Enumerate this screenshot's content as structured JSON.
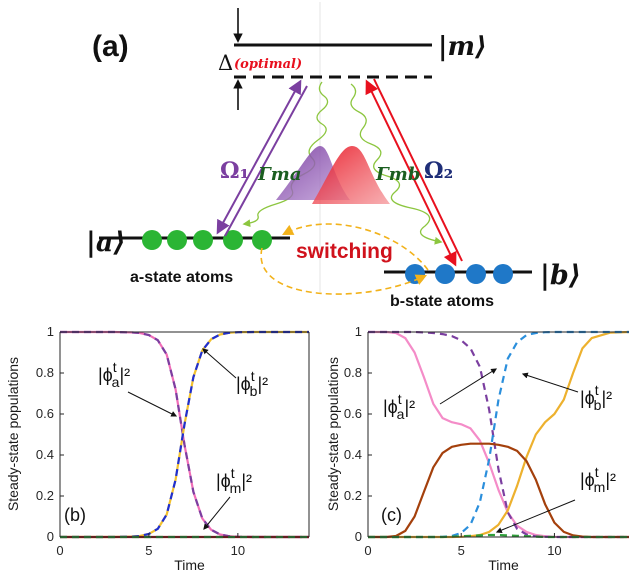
{
  "diagram": {
    "panel_label": "(a)",
    "state_m": "|m⟩",
    "state_a": "|a⟩",
    "state_b": "|b⟩",
    "delta_symbol": "Δ",
    "delta_note": "(optimal)",
    "omega1": "Ω₁",
    "omega2": "Ω₂",
    "gamma_ma": "Γma",
    "gamma_mb": "Γmb",
    "switching": "switching",
    "a_atoms": "a-state atoms",
    "b_atoms": "b-state atoms",
    "colors": {
      "omega1": "#7B3FA0",
      "omega2": "#E8101E",
      "gamma": "#1B5E20",
      "a_atom": "#2BB534",
      "b_atom": "#1F78C8",
      "switch_arrow": "#F2B21B",
      "decay": "#8CC63F"
    }
  },
  "chart_data": [
    {
      "type": "line",
      "panel_label": "(b)",
      "xlabel": "Time",
      "ylabel": "Steady-state populations",
      "xlim": [
        0,
        14
      ],
      "ylim": [
        0,
        1
      ],
      "xticks": [
        0,
        5,
        10
      ],
      "yticks": [
        0,
        0.2,
        0.4,
        0.6,
        0.8,
        1
      ],
      "x": [
        0,
        1,
        2,
        3,
        4,
        4.5,
        5,
        5.5,
        6,
        6.5,
        7,
        7.5,
        8,
        8.5,
        9,
        9.5,
        10,
        11,
        12,
        13,
        14
      ],
      "series": [
        {
          "key": "a",
          "color": "#F06EB8",
          "dash": "solid",
          "values": [
            1,
            1,
            1,
            1,
            0.998,
            0.995,
            0.985,
            0.96,
            0.89,
            0.72,
            0.45,
            0.22,
            0.09,
            0.035,
            0.012,
            0.004,
            0.001,
            0,
            0,
            0,
            0
          ]
        },
        {
          "key": "a_overlay",
          "color": "#7B3FA0",
          "dash": "dash",
          "values": [
            1,
            1,
            1,
            1,
            0.998,
            0.995,
            0.985,
            0.96,
            0.89,
            0.72,
            0.45,
            0.22,
            0.09,
            0.035,
            0.012,
            0.004,
            0.001,
            0,
            0,
            0,
            0
          ]
        },
        {
          "key": "b",
          "color": "#F2C12E",
          "dash": "solid",
          "values": [
            0,
            0,
            0,
            0,
            0.002,
            0.005,
            0.015,
            0.04,
            0.11,
            0.28,
            0.55,
            0.78,
            0.91,
            0.965,
            0.988,
            0.996,
            0.999,
            1,
            1,
            1,
            1
          ]
        },
        {
          "key": "b_overlay",
          "color": "#1F2FD0",
          "dash": "dash",
          "values": [
            0,
            0,
            0,
            0,
            0.002,
            0.005,
            0.015,
            0.04,
            0.11,
            0.28,
            0.55,
            0.78,
            0.91,
            0.965,
            0.988,
            0.996,
            0.999,
            1,
            1,
            1,
            1
          ]
        },
        {
          "key": "m",
          "color": "#9E1A1A",
          "dash": "solid",
          "values": [
            0,
            0,
            0,
            0,
            0,
            0,
            0,
            0,
            0,
            0,
            0,
            0,
            0,
            0,
            0,
            0,
            0,
            0,
            0,
            0,
            0
          ]
        },
        {
          "key": "m_overlay",
          "color": "#2E9E3A",
          "dash": "dash",
          "values": [
            0,
            0,
            0,
            0,
            0,
            0,
            0,
            0,
            0,
            0,
            0,
            0,
            0,
            0,
            0,
            0,
            0,
            0,
            0,
            0,
            0
          ]
        }
      ],
      "annotations": [
        {
          "base": "|ϕ",
          "sup": "t",
          "sub": "a",
          "tail": "|²",
          "key": "a"
        },
        {
          "base": "|ϕ",
          "sup": "t",
          "sub": "b",
          "tail": "|²",
          "key": "b"
        },
        {
          "base": "|ϕ",
          "sup": "t",
          "sub": "m",
          "tail": "|²",
          "key": "m"
        }
      ]
    },
    {
      "type": "line",
      "panel_label": "(c)",
      "xlabel": "Time",
      "ylabel": "Steady-state populations",
      "xlim": [
        0,
        14
      ],
      "ylim": [
        0,
        1
      ],
      "xticks": [
        0,
        5,
        10
      ],
      "yticks": [
        0,
        0.2,
        0.4,
        0.6,
        0.8,
        1
      ],
      "x": [
        0,
        1,
        1.5,
        2,
        2.5,
        3,
        3.5,
        4,
        4.5,
        5,
        5.5,
        6,
        6.5,
        7,
        7.5,
        8,
        8.5,
        9,
        9.5,
        10,
        10.5,
        11,
        11.5,
        12,
        13,
        14
      ],
      "series": [
        {
          "key": "a",
          "color": "#F48CC8",
          "dash": "solid",
          "values": [
            1,
            1,
            0.995,
            0.97,
            0.9,
            0.78,
            0.65,
            0.58,
            0.56,
            0.55,
            0.53,
            0.47,
            0.36,
            0.23,
            0.12,
            0.055,
            0.025,
            0.01,
            0.004,
            0.001,
            0,
            0,
            0,
            0,
            0,
            0
          ]
        },
        {
          "key": "a_dashed",
          "color": "#7B3FA0",
          "dash": "dash",
          "values": [
            1,
            1,
            1,
            1,
            1,
            0.998,
            0.995,
            0.99,
            0.98,
            0.96,
            0.92,
            0.83,
            0.62,
            0.33,
            0.12,
            0.04,
            0.012,
            0.003,
            0.001,
            0,
            0,
            0,
            0,
            0,
            0,
            0
          ]
        },
        {
          "key": "b",
          "color": "#EDB12E",
          "dash": "solid",
          "values": [
            0,
            0,
            0,
            0,
            0,
            0,
            0,
            0,
            0,
            0.001,
            0.004,
            0.01,
            0.025,
            0.06,
            0.13,
            0.25,
            0.39,
            0.5,
            0.56,
            0.6,
            0.67,
            0.8,
            0.92,
            0.97,
            0.997,
            1
          ]
        },
        {
          "key": "b_dashed",
          "color": "#2B8FDC",
          "dash": "dash",
          "values": [
            0,
            0,
            0,
            0,
            0,
            0,
            0,
            0.001,
            0.005,
            0.02,
            0.06,
            0.17,
            0.38,
            0.67,
            0.87,
            0.95,
            0.985,
            0.995,
            0.999,
            1,
            1,
            1,
            1,
            1,
            1,
            1
          ]
        },
        {
          "key": "m",
          "color": "#A4400C",
          "dash": "solid",
          "values": [
            0,
            0,
            0.005,
            0.03,
            0.1,
            0.22,
            0.34,
            0.41,
            0.44,
            0.45,
            0.455,
            0.455,
            0.455,
            0.45,
            0.44,
            0.42,
            0.37,
            0.28,
            0.16,
            0.07,
            0.025,
            0.008,
            0.002,
            0,
            0,
            0
          ]
        },
        {
          "key": "m_dashed",
          "color": "#2E9E3A",
          "dash": "dash",
          "values": [
            0,
            0,
            0,
            0,
            0,
            0,
            0,
            0,
            0.002,
            0.004,
            0.006,
            0.008,
            0.01,
            0.01,
            0.008,
            0.006,
            0.004,
            0.002,
            0,
            0,
            0,
            0,
            0,
            0,
            0,
            0
          ]
        }
      ],
      "annotations": [
        {
          "base": "|ϕ",
          "sup": "t",
          "sub": "a",
          "tail": "|²",
          "key": "a"
        },
        {
          "base": "|ϕ",
          "sup": "t",
          "sub": "b",
          "tail": "|²",
          "key": "b"
        },
        {
          "base": "|ϕ",
          "sup": "t",
          "sub": "m",
          "tail": "|²",
          "key": "m"
        }
      ]
    }
  ]
}
